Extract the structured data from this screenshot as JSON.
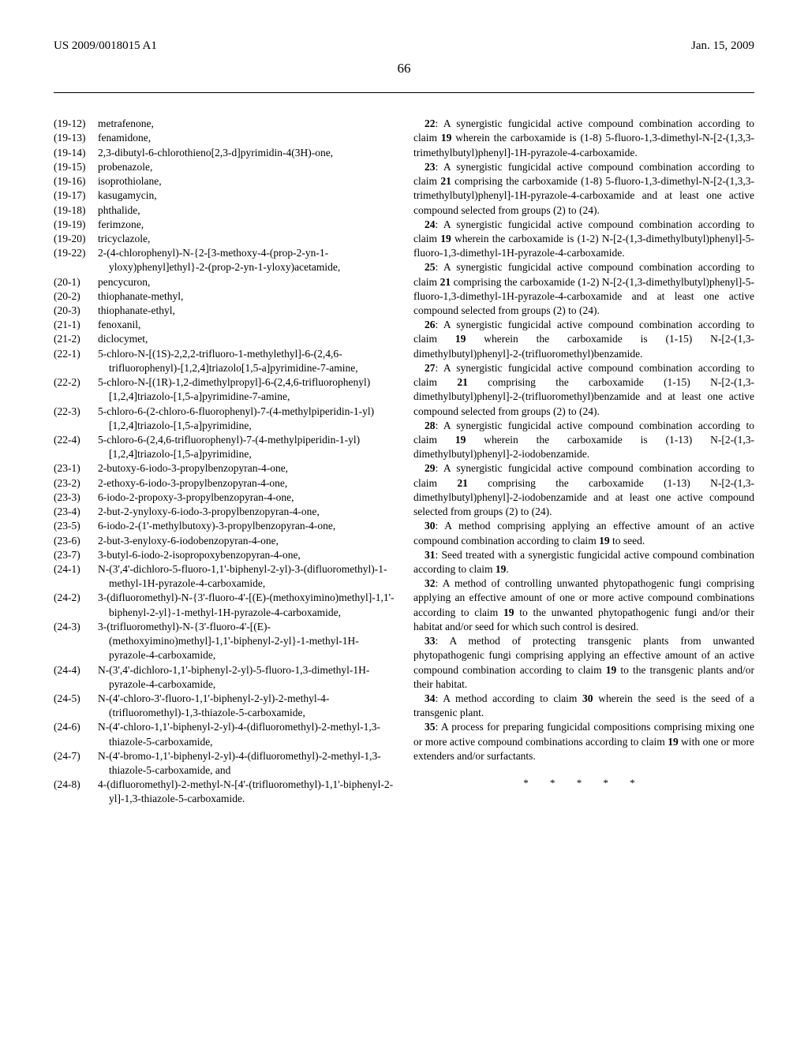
{
  "header": {
    "pub_number": "US 2009/0018015 A1",
    "date": "Jan. 15, 2009"
  },
  "page_number": "66",
  "left_items": [
    {
      "tag": "(19-12)",
      "text": "metrafenone,"
    },
    {
      "tag": "(19-13)",
      "text": "fenamidone,"
    },
    {
      "tag": "(19-14)",
      "text": "2,3-dibutyl-6-chlorothieno[2,3-d]pyrimidin-4(3H)-one,"
    },
    {
      "tag": "(19-15)",
      "text": "probenazole,"
    },
    {
      "tag": "(19-16)",
      "text": "isoprothiolane,"
    },
    {
      "tag": "(19-17)",
      "text": "kasugamycin,"
    },
    {
      "tag": "(19-18)",
      "text": "phthalide,"
    },
    {
      "tag": "(19-19)",
      "text": "ferimzone,"
    },
    {
      "tag": "(19-20)",
      "text": "tricyclazole,"
    },
    {
      "tag": "(19-22)",
      "text": "2-(4-chlorophenyl)-N-{2-[3-methoxy-4-(prop-2-yn-1-yloxy)phenyl]ethyl}-2-(prop-2-yn-1-yloxy)acetamide,"
    },
    {
      "tag": "(20-1)",
      "text": "pencycuron,"
    },
    {
      "tag": "(20-2)",
      "text": "thiophanate-methyl,"
    },
    {
      "tag": "(20-3)",
      "text": "thiophanate-ethyl,"
    },
    {
      "tag": "(21-1)",
      "text": "fenoxanil,"
    },
    {
      "tag": "(21-2)",
      "text": "diclocymet,"
    },
    {
      "tag": "(22-1)",
      "text": "5-chloro-N-[(1S)-2,2,2-trifluoro-1-methylethyl]-6-(2,4,6-trifluorophenyl)-[1,2,4]triazolo[1,5-a]pyrimidine-7-amine,"
    },
    {
      "tag": "(22-2)",
      "text": "5-chloro-N-[(1R)-1,2-dimethylpropyl]-6-(2,4,6-trifluorophenyl)[1,2,4]triazolo-[1,5-a]pyrimidine-7-amine,"
    },
    {
      "tag": "(22-3)",
      "text": "5-chloro-6-(2-chloro-6-fluorophenyl)-7-(4-methylpiperidin-1-yl)[1,2,4]triazolo-[1,5-a]pyrimidine,"
    },
    {
      "tag": "(22-4)",
      "text": "5-chloro-6-(2,4,6-trifluorophenyl)-7-(4-methylpiperidin-1-yl)[1,2,4]triazolo-[1,5-a]pyrimidine,"
    },
    {
      "tag": "(23-1)",
      "text": "2-butoxy-6-iodo-3-propylbenzopyran-4-one,"
    },
    {
      "tag": "(23-2)",
      "text": "2-ethoxy-6-iodo-3-propylbenzopyran-4-one,"
    },
    {
      "tag": "(23-3)",
      "text": "6-iodo-2-propoxy-3-propylbenzopyran-4-one,"
    },
    {
      "tag": "(23-4)",
      "text": "2-but-2-ynyloxy-6-iodo-3-propylbenzopyran-4-one,"
    },
    {
      "tag": "(23-5)",
      "text": "6-iodo-2-(1'-methylbutoxy)-3-propylbenzopyran-4-one,"
    },
    {
      "tag": "(23-6)",
      "text": "2-but-3-enyloxy-6-iodobenzopyran-4-one,"
    },
    {
      "tag": "(23-7)",
      "text": "3-butyl-6-iodo-2-isopropoxybenzopyran-4-one,"
    },
    {
      "tag": "(24-1)",
      "text": "N-(3',4'-dichloro-5-fluoro-1,1'-biphenyl-2-yl)-3-(difluoromethyl)-1-methyl-1H-pyrazole-4-carboxamide,"
    },
    {
      "tag": "(24-2)",
      "text": "3-(difluoromethyl)-N-{3'-fluoro-4'-[(E)-(methoxyimino)methyl]-1,1'-biphenyl-2-yl}-1-methyl-1H-pyrazole-4-carboxamide,"
    },
    {
      "tag": "(24-3)",
      "text": "3-(trifluoromethyl)-N-{3'-fluoro-4'-[(E)-(methoxyimino)methyl]-1,1'-biphenyl-2-yl}-1-methyl-1H-pyrazole-4-carboxamide,"
    },
    {
      "tag": "(24-4)",
      "text": "N-(3',4'-dichloro-1,1'-biphenyl-2-yl)-5-fluoro-1,3-dimethyl-1H-pyrazole-4-carboxamide,"
    },
    {
      "tag": "(24-5)",
      "text": "N-(4'-chloro-3'-fluoro-1,1'-biphenyl-2-yl)-2-methyl-4-(trifluoromethyl)-1,3-thiazole-5-carboxamide,"
    },
    {
      "tag": "(24-6)",
      "text": "N-(4'-chloro-1,1'-biphenyl-2-yl)-4-(difluoromethyl)-2-methyl-1,3-thiazole-5-carboxamide,"
    },
    {
      "tag": "(24-7)",
      "text": "N-(4'-bromo-1,1'-biphenyl-2-yl)-4-(difluoromethyl)-2-methyl-1,3-thiazole-5-carboxamide, and"
    },
    {
      "tag": "(24-8)",
      "text": "4-(difluoromethyl)-2-methyl-N-[4'-(trifluoromethyl)-1,1'-biphenyl-2-yl]-1,3-thiazole-5-carboxamide."
    }
  ],
  "claims": [
    {
      "num": "22",
      "text": "A synergistic fungicidal active compound combination according to claim 19 wherein the carboxamide is (1-8) 5-fluoro-1,3-dimethyl-N-[2-(1,3,3-trimethylbutyl)phenyl]-1H-pyrazole-4-carboxamide."
    },
    {
      "num": "23",
      "text": "A synergistic fungicidal active compound combination according to claim 21 comprising the carboxamide (1-8) 5-fluoro-1,3-dimethyl-N-[2-(1,3,3-trimethylbutyl)phenyl]-1H-pyrazole-4-carboxamide and at least one active compound selected from groups (2) to (24)."
    },
    {
      "num": "24",
      "text": "A synergistic fungicidal active compound combination according to claim 19 wherein the carboxamide is (1-2) N-[2-(1,3-dimethylbutyl)phenyl]-5-fluoro-1,3-dimethyl-1H-pyrazole-4-carboxamide."
    },
    {
      "num": "25",
      "text": "A synergistic fungicidal active compound combination according to claim 21 comprising the carboxamide (1-2) N-[2-(1,3-dimethylbutyl)phenyl]-5-fluoro-1,3-dimethyl-1H-pyrazole-4-carboxamide and at least one active compound selected from groups (2) to (24)."
    },
    {
      "num": "26",
      "text": "A synergistic fungicidal active compound combination according to claim 19 wherein the carboxamide is (1-15) N-[2-(1,3-dimethylbutyl)phenyl]-2-(trifluoromethyl)benzamide."
    },
    {
      "num": "27",
      "text": "A synergistic fungicidal active compound combination according to claim 21 comprising the carboxamide (1-15) N-[2-(1,3-dimethylbutyl)phenyl]-2-(trifluoromethyl)benzamide and at least one active compound selected from groups (2) to (24)."
    },
    {
      "num": "28",
      "text": "A synergistic fungicidal active compound combination according to claim 19 wherein the carboxamide is (1-13) N-[2-(1,3-dimethylbutyl)phenyl]-2-iodobenzamide."
    },
    {
      "num": "29",
      "text": "A synergistic fungicidal active compound combination according to claim 21 comprising the carboxamide (1-13) N-[2-(1,3-dimethylbutyl)phenyl]-2-iodobenzamide and at least one active compound selected from groups (2) to (24)."
    },
    {
      "num": "30",
      "text": "A method comprising applying an effective amount of an active compound combination according to claim 19 to seed."
    },
    {
      "num": "31",
      "text": "Seed treated with a synergistic fungicidal active compound combination according to claim 19."
    },
    {
      "num": "32",
      "text": "A method of controlling unwanted phytopathogenic fungi comprising applying an effective amount of one or more active compound combinations according to claim 19 to the unwanted phytopathogenic fungi and/or their habitat and/or seed for which such control is desired."
    },
    {
      "num": "33",
      "text": "A method of protecting transgenic plants from unwanted phytopathogenic fungi comprising applying an effective amount of an active compound combination according to claim 19 to the transgenic plants and/or their habitat."
    },
    {
      "num": "34",
      "text": "A method according to claim 30 wherein the seed is the seed of a transgenic plant."
    },
    {
      "num": "35",
      "text": "A process for preparing fungicidal compositions comprising mixing one or more active compound combinations according to claim 19 with one or more extenders and/or surfactants."
    }
  ],
  "end_marker": "* * * * *"
}
